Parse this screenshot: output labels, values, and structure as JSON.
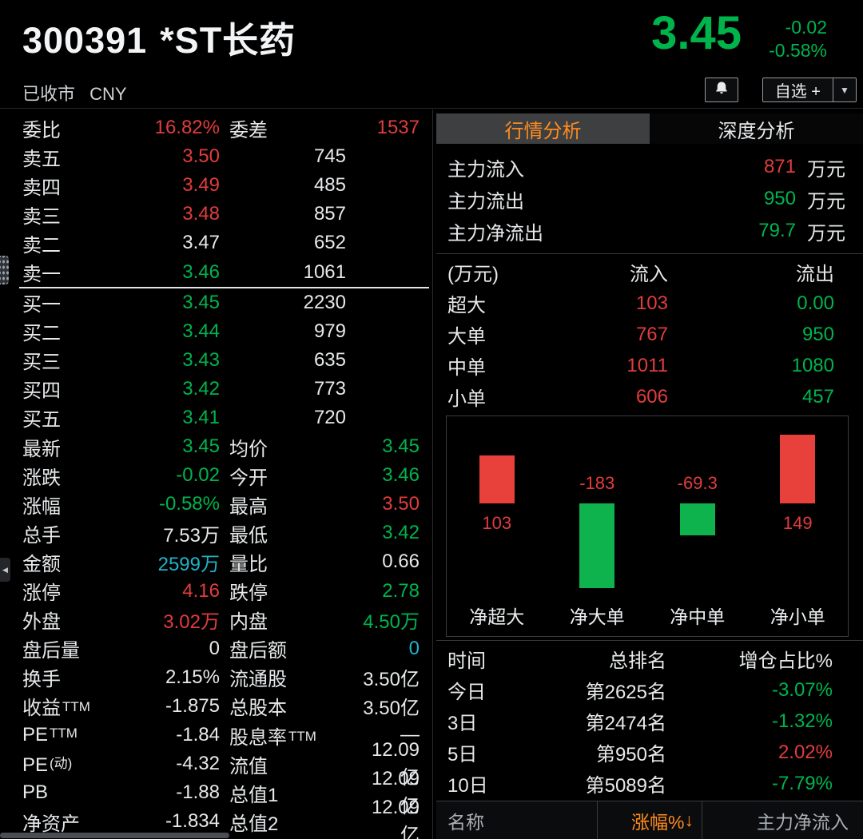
{
  "palette": {
    "red": "#e23c3c",
    "green": "#00b44c",
    "cyan": "#1fb3c9",
    "orange": "#ff8c1e",
    "bar_red": "#e8413c",
    "bar_green": "#0eb34e"
  },
  "header": {
    "symbol": "300391",
    "name": "*ST长药",
    "status": "已收市",
    "currency": "CNY",
    "price": "3.45",
    "change": "-0.02",
    "change_pct": "-0.58%",
    "watchlist_label": "自选 +",
    "dropdown_icon": "▼"
  },
  "order_book": {
    "summary": {
      "l1": "委比",
      "v1": "16.82%",
      "c1": "red",
      "l2": "委差",
      "v2": "1537",
      "c2": "red"
    },
    "asks": [
      {
        "label": "卖五",
        "price": "3.50",
        "vol": "745",
        "color": "red"
      },
      {
        "label": "卖四",
        "price": "3.49",
        "vol": "485",
        "color": "red"
      },
      {
        "label": "卖三",
        "price": "3.48",
        "vol": "857",
        "color": "red"
      },
      {
        "label": "卖二",
        "price": "3.47",
        "vol": "652",
        "color": "white"
      },
      {
        "label": "卖一",
        "price": "3.46",
        "vol": "1061",
        "color": "green"
      }
    ],
    "bids": [
      {
        "label": "买一",
        "price": "3.45",
        "vol": "2230",
        "color": "green"
      },
      {
        "label": "买二",
        "price": "3.44",
        "vol": "979",
        "color": "green"
      },
      {
        "label": "买三",
        "price": "3.43",
        "vol": "635",
        "color": "green"
      },
      {
        "label": "买四",
        "price": "3.42",
        "vol": "773",
        "color": "green"
      },
      {
        "label": "买五",
        "price": "3.41",
        "vol": "720",
        "color": "green"
      }
    ]
  },
  "stats": [
    {
      "l1": "最新",
      "v1": "3.45",
      "c1": "green",
      "l2": "均价",
      "v2": "3.45",
      "c2": "green"
    },
    {
      "l1": "涨跌",
      "v1": "-0.02",
      "c1": "green",
      "l2": "今开",
      "v2": "3.46",
      "c2": "green"
    },
    {
      "l1": "涨幅",
      "v1": "-0.58%",
      "c1": "green",
      "l2": "最高",
      "v2": "3.50",
      "c2": "red"
    },
    {
      "l1": "总手",
      "v1": "7.53万",
      "c1": "white",
      "l2": "最低",
      "v2": "3.42",
      "c2": "green"
    },
    {
      "l1": "金额",
      "v1": "2599万",
      "c1": "cyan",
      "l2": "量比",
      "v2": "0.66",
      "c2": "white"
    },
    {
      "l1": "涨停",
      "v1": "4.16",
      "c1": "red",
      "l2": "跌停",
      "v2": "2.78",
      "c2": "green"
    },
    {
      "l1": "外盘",
      "v1": "3.02万",
      "c1": "red",
      "l2": "内盘",
      "v2": "4.50万",
      "c2": "green"
    },
    {
      "l1": "盘后量",
      "v1": "0",
      "c1": "white",
      "l2": "盘后额",
      "v2": "0",
      "c2": "cyan"
    },
    {
      "l1": "换手",
      "v1": "2.15%",
      "c1": "white",
      "l2": "流通股",
      "v2": "3.50亿",
      "c2": "white"
    },
    {
      "l1": "收益",
      "l1s": "TTM",
      "v1": "-1.875",
      "c1": "white",
      "l2": "总股本",
      "v2": "3.50亿",
      "c2": "white"
    },
    {
      "l1": "PE",
      "l1s": "TTM",
      "v1": "-1.84",
      "c1": "white",
      "l2": "股息率",
      "l2s": "TTM",
      "v2": "—",
      "c2": "white"
    },
    {
      "l1": "PE",
      "l1s": "(动)",
      "v1": "-4.32",
      "c1": "white",
      "l2": "流值",
      "v2": "12.09亿",
      "c2": "white"
    },
    {
      "l1": "PB",
      "v1": "-1.88",
      "c1": "white",
      "l2": "总值1",
      "v2": "12.09亿",
      "c2": "white"
    },
    {
      "l1": "净资产",
      "v1": "-1.834",
      "c1": "white",
      "l2": "总值2",
      "v2": "12.09亿",
      "c2": "white"
    }
  ],
  "tabs": [
    {
      "label": "行情分析"
    },
    {
      "label": "深度分析"
    }
  ],
  "flows": [
    {
      "label": "主力流入",
      "value": "871",
      "unit": "万元",
      "color": "red"
    },
    {
      "label": "主力流出",
      "value": "950",
      "unit": "万元",
      "color": "green"
    },
    {
      "label": "主力净流出",
      "value": "79.7",
      "unit": "万元",
      "color": "green"
    }
  ],
  "flow_table": {
    "headers": [
      "(万元)",
      "流入",
      "流出"
    ],
    "rows": [
      {
        "label": "超大",
        "inflow": "103",
        "outflow": "0.00"
      },
      {
        "label": "大单",
        "inflow": "767",
        "outflow": "950"
      },
      {
        "label": "中单",
        "inflow": "1011",
        "outflow": "1080"
      },
      {
        "label": "小单",
        "inflow": "606",
        "outflow": "457"
      }
    ]
  },
  "chart_data": {
    "type": "bar",
    "categories": [
      "净超大",
      "净大单",
      "净中单",
      "净小单"
    ],
    "values": [
      103,
      -183,
      -69.3,
      149
    ],
    "labels": [
      "103",
      "-183",
      "-69.3",
      "149"
    ],
    "bar_colors": [
      "red",
      "green",
      "green",
      "red"
    ],
    "label_color": "red",
    "baseline": 0,
    "ylim": [
      -200,
      170
    ]
  },
  "rank_table": {
    "headers": [
      "时间",
      "总排名",
      "增仓占比%"
    ],
    "rows": [
      {
        "time": "今日",
        "rank": "第2625名",
        "pct": "-3.07%",
        "color": "green"
      },
      {
        "time": "3日",
        "rank": "第2474名",
        "pct": "-1.32%",
        "color": "green"
      },
      {
        "time": "5日",
        "rank": "第950名",
        "pct": "2.02%",
        "color": "red"
      },
      {
        "time": "10日",
        "rank": "第5089名",
        "pct": "-7.79%",
        "color": "green"
      }
    ]
  },
  "bottom_bar": {
    "name": "名称",
    "change": "涨幅%",
    "sort_icon": "↓",
    "net_inflow": "主力净流入"
  }
}
